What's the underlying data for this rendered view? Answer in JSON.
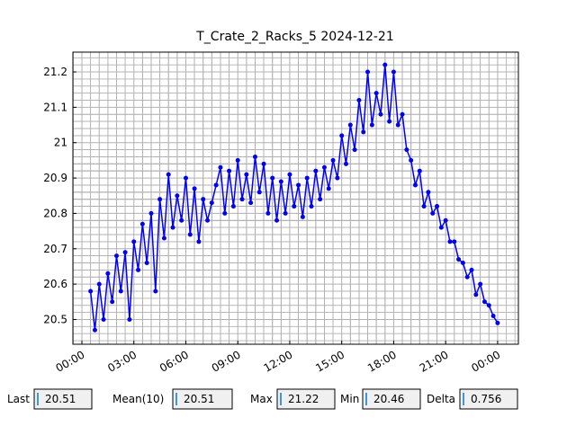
{
  "chart_data": {
    "type": "line",
    "title": "T_Crate_2_Racks_5 2024-12-21",
    "x": [
      0.5,
      0.75,
      1,
      1.25,
      1.5,
      1.75,
      2,
      2.25,
      2.5,
      2.75,
      3,
      3.25,
      3.5,
      3.75,
      4,
      4.25,
      4.5,
      4.75,
      5,
      5.25,
      5.5,
      5.75,
      6,
      6.25,
      6.5,
      6.75,
      7,
      7.25,
      7.5,
      7.75,
      8,
      8.25,
      8.5,
      8.75,
      9,
      9.25,
      9.5,
      9.75,
      10,
      10.25,
      10.5,
      10.75,
      11,
      11.25,
      11.5,
      11.75,
      12,
      12.25,
      12.5,
      12.75,
      13,
      13.25,
      13.5,
      13.75,
      14,
      14.25,
      14.5,
      14.75,
      15,
      15.25,
      15.5,
      15.75,
      16,
      16.25,
      16.5,
      16.75,
      17,
      17.25,
      17.5,
      17.75,
      18,
      18.25,
      18.5,
      18.75,
      19,
      19.25,
      19.5,
      19.75,
      20,
      20.25,
      20.5,
      20.75,
      21,
      21.25,
      21.5,
      21.75,
      22,
      22.25,
      22.5,
      22.75,
      23,
      23.25,
      23.5,
      23.75,
      24
    ],
    "series": [
      {
        "color": "#0000ff",
        "values": [
          20.58,
          20.47,
          20.6,
          20.5,
          20.63,
          20.55,
          20.68,
          20.58,
          20.69,
          20.5,
          20.72,
          20.64,
          20.77,
          20.66,
          20.8,
          20.58,
          20.84,
          20.73,
          20.91,
          20.76,
          20.85,
          20.78,
          20.9,
          20.74,
          20.87,
          20.72,
          20.84,
          20.78,
          20.83,
          20.88,
          20.93,
          20.8,
          20.92,
          20.82,
          20.95,
          20.84,
          20.91,
          20.83,
          20.96,
          20.86,
          20.94,
          20.8,
          20.9,
          20.78,
          20.89,
          20.8,
          20.91,
          20.82,
          20.88,
          20.79,
          20.9,
          20.82,
          20.92,
          20.84,
          20.93,
          20.87,
          20.95,
          20.9,
          21.02,
          20.94,
          21.05,
          20.98,
          21.12,
          21.03,
          21.2,
          21.05,
          21.14,
          21.08,
          21.22,
          21.06,
          21.2,
          21.05,
          21.08,
          20.98,
          20.95,
          20.88,
          20.92,
          20.82,
          20.86,
          20.8,
          20.82,
          20.76,
          20.78,
          20.72,
          20.72,
          20.67,
          20.66,
          20.62,
          20.64,
          20.57,
          20.6,
          20.55,
          20.54,
          20.51,
          20.49
        ]
      }
    ],
    "xlim": [
      -0.52,
      25.2
    ],
    "xticks": [
      {
        "value": 0,
        "label": "00:00"
      },
      {
        "value": 3,
        "label": "03:00"
      },
      {
        "value": 6,
        "label": "06:00"
      },
      {
        "value": 9,
        "label": "09:00"
      },
      {
        "value": 12,
        "label": "12:00"
      },
      {
        "value": 15,
        "label": "15:00"
      },
      {
        "value": 18,
        "label": "18:00"
      },
      {
        "value": 21,
        "label": "21:00"
      },
      {
        "value": 24,
        "label": "00:00"
      }
    ],
    "ylim": [
      20.43,
      21.256
    ],
    "yticks": [
      20.5,
      20.6,
      20.7,
      20.8,
      20.9,
      21.0,
      21.1,
      21.2
    ],
    "grid": true
  },
  "stats": [
    {
      "label": "Last",
      "value": 20.51
    },
    {
      "label": "Mean(10)",
      "value": 20.51
    },
    {
      "label": "Max",
      "value": 21.22
    },
    {
      "label": "Min",
      "value": 20.46
    },
    {
      "label": "Delta",
      "value": 0.756
    }
  ]
}
